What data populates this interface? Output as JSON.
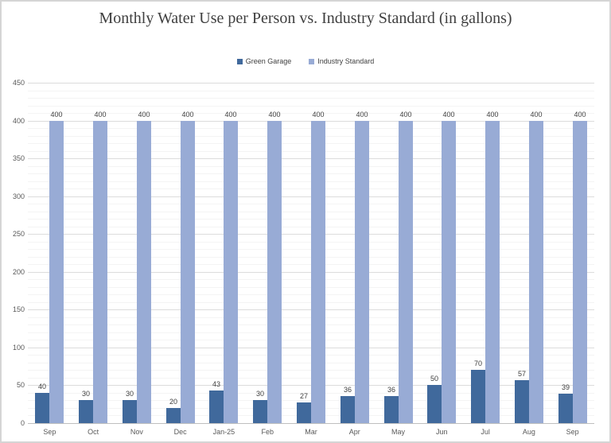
{
  "window": {
    "background": "#ffffff",
    "border_color": "#d5d5d5"
  },
  "chart_data": {
    "type": "bar",
    "title": "Monthly Water Use per Person vs. Industry Standard (in gallons)",
    "categories": [
      "Sep",
      "Oct",
      "Nov",
      "Dec",
      "Jan-25",
      "Feb",
      "Mar",
      "Apr",
      "May",
      "Jun",
      "Jul",
      "Aug",
      "Sep"
    ],
    "series": [
      {
        "name": "Green Garage",
        "color": "#40699c",
        "values": [
          40,
          30,
          30,
          20,
          43,
          30,
          27,
          36,
          36,
          50,
          70,
          57,
          39
        ]
      },
      {
        "name": "Industry Standard",
        "color": "#98abd5",
        "values": [
          400,
          400,
          400,
          400,
          400,
          400,
          400,
          400,
          400,
          400,
          400,
          400,
          400
        ]
      }
    ],
    "ylim": [
      0,
      450
    ],
    "y_major_step": 50,
    "y_minor_step": 10,
    "grid": "major+minor",
    "legend_position": "top-center",
    "data_labels": true,
    "colors": {
      "title_text": "#3f3f3f",
      "axis_text": "#595959",
      "data_label_text": "#404040",
      "major_grid": "#dcdcdc",
      "minor_grid": "#f4f4f4",
      "axis_line": "#bfbfbf"
    }
  }
}
